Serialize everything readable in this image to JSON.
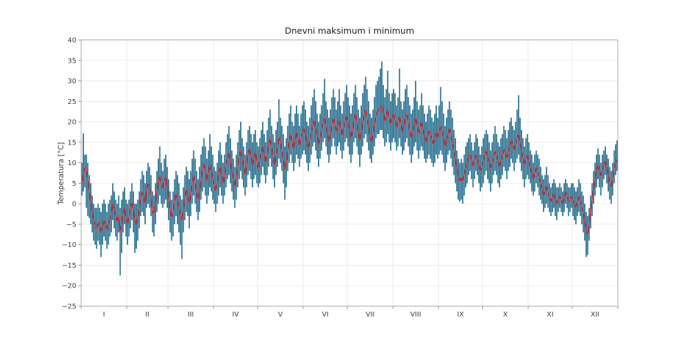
{
  "figure": {
    "title": "Dnevni maksimum i minimum",
    "ylabel": "Temperatura [°C]",
    "xlabel": ""
  },
  "chart_data": {
    "type": "bar",
    "subtype": "daily-min-max-range-bars-with-mean-line",
    "title": "Dnevni maksimum i minimum",
    "ylabel": "Temperatura [°C]",
    "xlabel": "",
    "ylim": [
      -25,
      40
    ],
    "y_ticks": [
      40,
      35,
      30,
      25,
      20,
      15,
      10,
      5,
      0,
      -5,
      -10,
      -15,
      -20,
      -25
    ],
    "x_tick_labels": [
      "I",
      "II",
      "III",
      "IV",
      "V",
      "VI",
      "VII",
      "VIII",
      "IX",
      "X",
      "XI",
      "XII"
    ],
    "month_lengths": [
      31,
      28,
      31,
      30,
      31,
      30,
      31,
      31,
      30,
      31,
      30,
      31
    ],
    "grid": true,
    "legend": "none",
    "colors": {
      "bar": "#1f6b8c",
      "line": "#e02128",
      "grid": "#e7e7e7",
      "spine": "#a6a6a6",
      "text": "#3a3a3a"
    },
    "series": [
      {
        "name": "min",
        "values": [
          2,
          3,
          4,
          -1,
          -3,
          -3.5,
          -5,
          -7,
          -9,
          -10,
          -11,
          -9,
          -10,
          -13,
          -10,
          -8,
          -9,
          -11,
          -10,
          -8,
          -7,
          -4,
          -6,
          -8,
          -9,
          -7,
          -17.5,
          -12,
          -7,
          -5,
          -8,
          -10,
          -8,
          -6,
          -4,
          -7,
          -12,
          -11,
          -9,
          -6,
          -3,
          -2,
          -3,
          -5,
          -1,
          0,
          -1,
          -3,
          -7,
          -8,
          -5,
          -2,
          0,
          2,
          0,
          -1,
          0,
          1,
          -1,
          -4,
          -7,
          -9,
          -8,
          -5,
          -3,
          -5,
          -7,
          -10,
          -13.5,
          -7,
          -4,
          -2,
          -3,
          -6,
          -3,
          0,
          2,
          0,
          -2,
          -4,
          -2,
          1,
          3,
          4,
          2,
          0,
          2,
          4,
          3,
          1,
          0,
          -2,
          0,
          2,
          4,
          2,
          0,
          2,
          4,
          6,
          7,
          5,
          3,
          1,
          -1,
          1,
          4,
          6,
          8,
          6,
          4,
          2,
          4,
          7,
          8,
          6,
          4,
          6,
          7,
          5,
          4,
          5,
          7,
          9,
          7,
          5,
          7,
          9,
          11,
          9,
          6,
          4,
          7,
          9,
          11,
          10,
          8,
          5,
          1,
          4,
          8,
          10,
          12,
          10,
          8,
          10,
          12,
          11,
          9,
          11,
          12,
          13,
          12,
          10,
          8,
          10,
          12,
          14,
          15,
          13,
          11,
          9,
          11,
          13,
          15,
          16,
          14,
          12,
          10,
          12,
          14,
          16,
          14,
          12,
          14,
          15,
          13,
          11,
          13,
          15,
          16,
          14,
          12,
          10,
          12,
          15,
          16,
          14,
          12,
          9,
          12,
          14,
          16,
          17,
          15,
          13,
          11,
          10,
          12,
          14,
          16,
          17,
          17,
          18,
          18,
          16,
          14,
          15,
          17,
          15,
          13,
          15,
          16,
          15,
          13,
          14,
          16,
          14,
          12,
          13,
          15,
          16,
          14,
          12,
          10,
          12,
          14,
          15,
          13,
          11,
          13,
          14,
          13,
          11,
          10,
          11,
          12,
          11,
          10,
          9,
          10,
          12,
          11,
          12,
          13,
          12,
          10,
          8,
          10,
          12,
          13,
          11,
          9,
          7,
          5,
          3,
          1,
          0.5,
          1,
          0,
          2,
          4,
          5,
          7,
          8,
          6,
          4,
          6,
          8,
          7,
          5,
          3,
          4,
          5,
          7,
          8,
          6,
          5,
          3,
          5,
          7,
          8,
          7,
          5,
          4,
          6,
          7,
          9,
          8,
          6,
          8,
          9,
          11,
          10,
          8,
          10,
          11,
          12,
          10,
          8,
          6,
          4,
          6,
          7,
          6,
          5,
          3,
          2,
          3,
          5,
          4,
          2,
          1,
          0,
          -2,
          -1,
          0,
          -1,
          -2,
          -3,
          -2,
          -1,
          -3,
          -4,
          -2,
          -1,
          -2,
          -3,
          -2,
          0,
          -1,
          -3,
          -2,
          -1,
          -3,
          -4,
          -5,
          -3,
          -2,
          -3,
          -5,
          -7,
          -9,
          -13,
          -12.5,
          -9,
          -6,
          -3,
          0,
          2,
          4,
          6,
          4,
          2,
          4,
          6,
          7,
          5,
          3,
          1,
          0,
          2,
          5,
          7,
          8
        ]
      },
      {
        "name": "max",
        "values": [
          10,
          17.2,
          12,
          12,
          10,
          7,
          5,
          2,
          0,
          -1,
          -1,
          0,
          -1,
          -2,
          0,
          1,
          0,
          -2,
          0,
          1,
          2,
          5,
          3,
          1,
          0,
          2,
          -1,
          1,
          3,
          4,
          1,
          0,
          1,
          3,
          5,
          3,
          0,
          0,
          1,
          3,
          6,
          8,
          7,
          5,
          8,
          10,
          9,
          7,
          3,
          2,
          5,
          8,
          11,
          14,
          10,
          8,
          11,
          12,
          9,
          6,
          3,
          1,
          3,
          6,
          8,
          7,
          5,
          2,
          1,
          4,
          7,
          9,
          8,
          6,
          8,
          11,
          13,
          11,
          8,
          6,
          9,
          12,
          14,
          16,
          14,
          11,
          13,
          17,
          14,
          12,
          9,
          8,
          10,
          13,
          15,
          12,
          10,
          12,
          15,
          17,
          19,
          16,
          13,
          11,
          9,
          12,
          15,
          18,
          20,
          16,
          14,
          12,
          15,
          18,
          19,
          17,
          15,
          17,
          18,
          15,
          14,
          16,
          18,
          20,
          17,
          15,
          18,
          21,
          23,
          19,
          17,
          15,
          18,
          20,
          25.5,
          21,
          19,
          17,
          14,
          16,
          19,
          22,
          24,
          20,
          19,
          22,
          24,
          22,
          19,
          22,
          24,
          25,
          23,
          20,
          19,
          21,
          24,
          26,
          28,
          25,
          22,
          20,
          22,
          24,
          27,
          30.5,
          25,
          23,
          21,
          23,
          26,
          28,
          26,
          23,
          25,
          28,
          24,
          22,
          25,
          27,
          29,
          26,
          24,
          22,
          24,
          27,
          29,
          26,
          23,
          21,
          24,
          27,
          29,
          31,
          28,
          25,
          22,
          21,
          23,
          26,
          29,
          30,
          31,
          33,
          34.7,
          29,
          26,
          28,
          32.5,
          27,
          25,
          27,
          28,
          27,
          24,
          26,
          33,
          25,
          23,
          25,
          28,
          29,
          26,
          24,
          22,
          23,
          26,
          30,
          25,
          23,
          24,
          27,
          24,
          22,
          20,
          22,
          24,
          23,
          21,
          20,
          22,
          24,
          21,
          24,
          28.5,
          25,
          22,
          19,
          21,
          23,
          25,
          23,
          21,
          18,
          16,
          13,
          11,
          10,
          11,
          10,
          12,
          14,
          15,
          16,
          17,
          15,
          13,
          15,
          17,
          16,
          14,
          12,
          14,
          16,
          17,
          18,
          17,
          15,
          13,
          15,
          17,
          19,
          17,
          15,
          14,
          16,
          17,
          19,
          18,
          16,
          18,
          20,
          21,
          19,
          18,
          20,
          23,
          26.5,
          21,
          18,
          16,
          14,
          16,
          17,
          15,
          13,
          12,
          10,
          12,
          13,
          12,
          11,
          9,
          7,
          6,
          7,
          9,
          7,
          5,
          4,
          5,
          6,
          5,
          4,
          4,
          5,
          4,
          3,
          5,
          6,
          5,
          4,
          4,
          5,
          5,
          4,
          3,
          4,
          6,
          5,
          3,
          2,
          0,
          -2,
          -3,
          -1,
          2,
          5,
          8,
          10,
          12,
          13.5,
          12,
          10,
          12,
          13,
          14,
          12,
          11,
          9,
          8,
          10,
          13,
          14.5,
          15.5
        ]
      },
      {
        "name": "mean",
        "values": [
          5,
          7.5,
          9,
          8.5,
          6,
          3,
          0.5,
          -2,
          -4,
          -5.5,
          -6,
          -4.5,
          -5.5,
          -7,
          -5.5,
          -4,
          -5,
          -6.5,
          -5,
          -4,
          -2.5,
          0,
          -1.5,
          -3,
          -4.5,
          -3,
          -7,
          -5,
          -2.5,
          -1,
          -3.5,
          -5,
          -3,
          -1,
          0.5,
          -1.5,
          -4,
          -5,
          -3.5,
          -1,
          1.5,
          3,
          2,
          0,
          3.5,
          5,
          4,
          2,
          -1.5,
          -2.5,
          0,
          3,
          5.5,
          7,
          5,
          3.5,
          5.5,
          6.5,
          4,
          1,
          -1.5,
          -3.5,
          -2,
          0.5,
          2.5,
          1,
          -1,
          -3,
          -4,
          -1.5,
          1.5,
          3.5,
          2,
          0,
          2.5,
          5,
          7,
          5.5,
          3,
          1,
          3,
          6,
          8.5,
          10,
          8,
          5.5,
          7.5,
          9.5,
          8,
          6,
          4.5,
          3,
          5,
          7.5,
          9,
          7,
          5,
          7,
          9.5,
          11,
          12.5,
          10.5,
          8,
          6,
          4,
          6.5,
          9,
          11.5,
          13,
          11,
          9,
          7,
          9.5,
          12,
          13.5,
          11.5,
          9.5,
          11,
          12.5,
          10,
          8.5,
          10.5,
          12.5,
          14,
          12,
          10,
          12,
          14.5,
          16,
          14,
          11.5,
          9.5,
          12,
          14,
          16.5,
          15,
          13,
          11,
          8.5,
          10,
          13,
          15.5,
          17,
          15,
          13.5,
          15.5,
          17.5,
          16,
          14,
          16,
          17.5,
          18.5,
          17,
          15,
          13.5,
          15.5,
          17.5,
          19,
          20.5,
          18.5,
          16.5,
          14.5,
          16,
          18,
          20,
          21,
          19,
          17,
          15,
          17,
          19.5,
          21,
          19.5,
          17.5,
          19,
          20.5,
          18.5,
          16.5,
          18.5,
          20,
          21.5,
          20,
          18,
          16,
          18,
          20.5,
          22,
          20,
          17.5,
          15.5,
          17.5,
          20,
          22,
          23,
          21,
          19,
          16.5,
          15,
          17,
          19.5,
          21.5,
          22.5,
          23,
          23.5,
          24,
          22,
          20,
          21.5,
          23,
          21,
          19.5,
          21,
          22,
          20.5,
          18.5,
          20,
          21.5,
          19.5,
          17.5,
          19,
          21,
          22,
          20,
          18,
          16,
          17.5,
          19.5,
          21,
          19,
          17,
          18.5,
          20,
          18.5,
          16.5,
          15,
          16.5,
          18,
          17,
          15.5,
          14.5,
          16,
          17.5,
          16,
          17.5,
          19,
          18,
          16,
          14,
          15.5,
          17,
          18.5,
          17,
          15,
          13,
          11,
          9,
          6.5,
          5.5,
          6.5,
          5.5,
          7,
          8.5,
          10,
          11.5,
          12,
          10.5,
          9,
          10.5,
          12,
          11,
          9.5,
          8,
          9,
          10.5,
          12,
          13,
          11.5,
          10,
          8.5,
          10,
          11.5,
          13,
          12,
          10.5,
          9,
          10.5,
          12,
          13.5,
          12.5,
          11,
          12.5,
          14,
          15.5,
          14.5,
          13,
          14.5,
          16,
          17,
          15,
          13,
          11,
          9.5,
          11,
          12,
          10.5,
          9,
          7.5,
          6,
          7.5,
          9,
          8,
          6.5,
          5,
          3.5,
          2,
          3,
          4.5,
          3,
          1.5,
          0.5,
          1.5,
          2.5,
          1,
          0,
          1,
          2,
          1,
          0,
          1.5,
          3,
          2,
          0.5,
          1,
          2,
          1,
          0,
          -1,
          0.5,
          2,
          1,
          -0.5,
          -2,
          -4,
          -6.5,
          -7.5,
          -5,
          -2,
          1,
          3.5,
          6,
          8,
          9.5,
          8,
          6.5,
          8,
          9.5,
          10.5,
          9,
          7,
          5,
          4,
          6,
          8.5,
          10,
          11
        ]
      }
    ]
  }
}
